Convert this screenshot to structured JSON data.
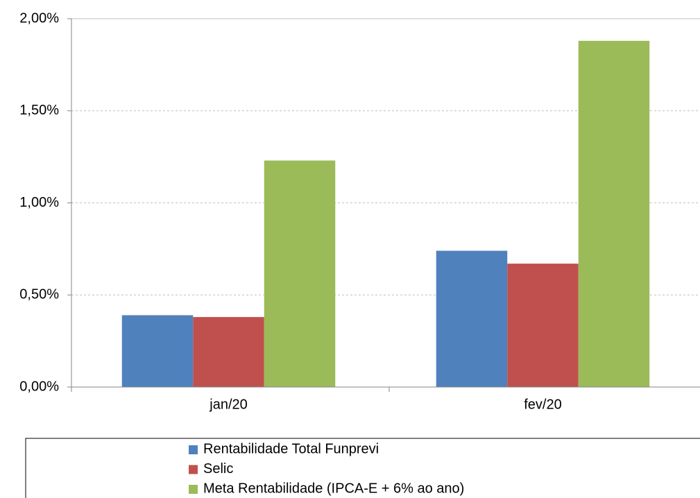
{
  "chart_data": {
    "type": "bar",
    "categories": [
      "jan/20",
      "fev/20"
    ],
    "series": [
      {
        "name": "Rentabilidade Total Funprevi",
        "color": "#4f81bd",
        "values": [
          0.39,
          0.74
        ]
      },
      {
        "name": "Selic",
        "color": "#c0504d",
        "values": [
          0.38,
          0.67
        ]
      },
      {
        "name": "Meta Rentabilidade (IPCA-E + 6% ao ano)",
        "color": "#9bbb59",
        "values": [
          1.23,
          1.88
        ]
      }
    ],
    "ylim": [
      0,
      2
    ],
    "yticks": [
      {
        "value": 0,
        "label": "0,00%"
      },
      {
        "value": 0.5,
        "label": "0,50%"
      },
      {
        "value": 1,
        "label": "1,00%"
      },
      {
        "value": 1.5,
        "label": "1,50%"
      },
      {
        "value": 2,
        "label": "2,00%"
      }
    ],
    "grid": true,
    "legend": "bottom"
  }
}
